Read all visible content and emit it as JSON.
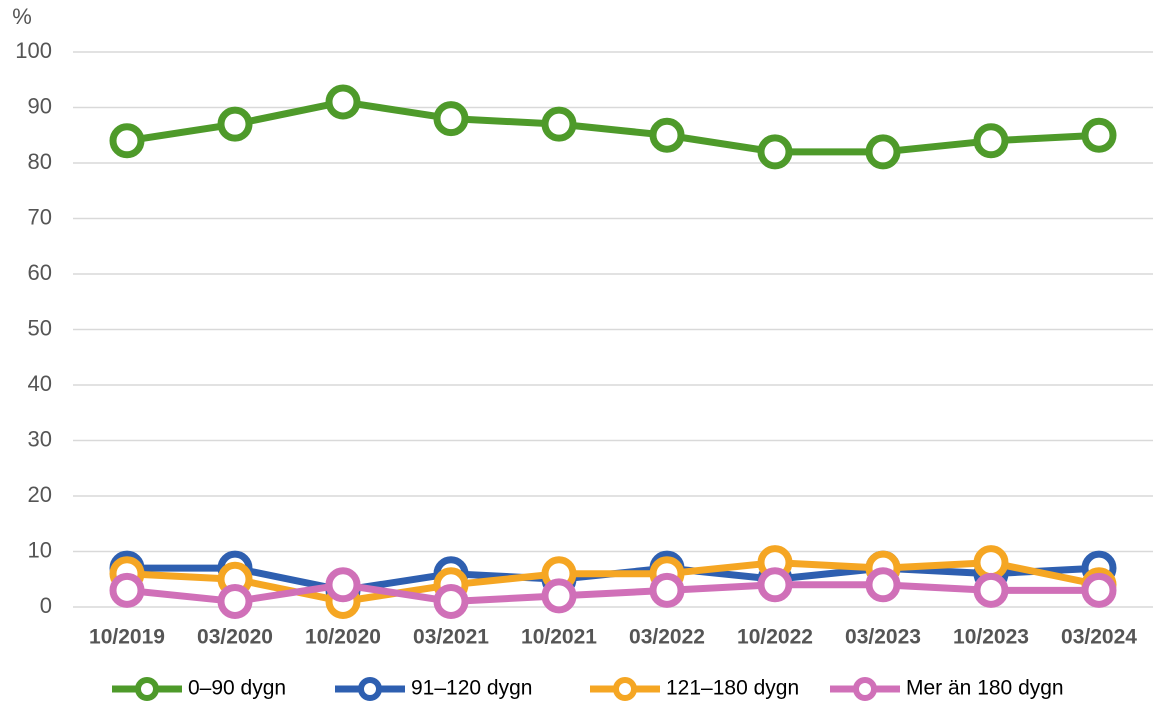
{
  "chart_data": {
    "type": "line",
    "y_unit_label": "%",
    "categories": [
      "10/2019",
      "03/2020",
      "10/2020",
      "03/2021",
      "10/2021",
      "03/2022",
      "10/2022",
      "03/2023",
      "10/2023",
      "03/2024"
    ],
    "series": [
      {
        "name": "0–90 dygn",
        "color": "#4e9a2a",
        "values": [
          84,
          87,
          91,
          88,
          87,
          85,
          82,
          82,
          84,
          85
        ]
      },
      {
        "name": "91–120 dygn",
        "color": "#2e5fb0",
        "values": [
          7,
          7,
          3,
          6,
          5,
          7,
          5,
          7,
          6,
          7
        ]
      },
      {
        "name": "121–180 dygn",
        "color": "#f5a623",
        "values": [
          6,
          5,
          1,
          4,
          6,
          6,
          8,
          7,
          8,
          4
        ]
      },
      {
        "name": "Mer än 180 dygn",
        "color": "#d070b8",
        "values": [
          3,
          1,
          4,
          1,
          2,
          3,
          4,
          4,
          3,
          3
        ]
      }
    ],
    "ylim": [
      0,
      100
    ],
    "yticks": [
      0,
      10,
      20,
      30,
      40,
      50,
      60,
      70,
      80,
      90,
      100
    ],
    "grid": true
  }
}
